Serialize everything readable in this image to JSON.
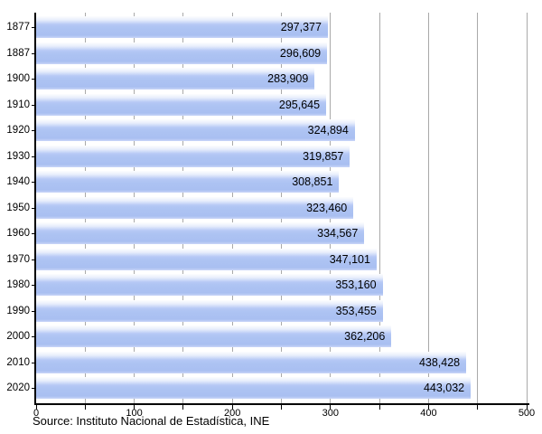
{
  "chart_data": {
    "type": "bar",
    "orientation": "horizontal",
    "title": "",
    "xlabel": "",
    "ylabel": "",
    "categories": [
      "1877",
      "1887",
      "1900",
      "1910",
      "1920",
      "1930",
      "1940",
      "1950",
      "1960",
      "1970",
      "1980",
      "1990",
      "2000",
      "2010",
      "2020"
    ],
    "values": [
      297377,
      296609,
      283909,
      295645,
      324894,
      319857,
      308851,
      323460,
      334567,
      347101,
      353160,
      353455,
      362206,
      438428,
      443032
    ],
    "value_labels": [
      "297,377",
      "296,609",
      "283,909",
      "295,645",
      "324,894",
      "319,857",
      "308,851",
      "323,460",
      "334,567",
      "347,101",
      "353,160",
      "353,455",
      "362,206",
      "438,428",
      "443,032"
    ],
    "x_axis": {
      "min": 0,
      "max": 500,
      "units_per_value": 1000,
      "minor_tick_step": 50,
      "label_step": 100,
      "tick_labels": [
        "0",
        "100",
        "200",
        "300",
        "400",
        "500"
      ]
    },
    "grid": true,
    "legend": false,
    "value_labels_position": "inside-end"
  },
  "source_note": "Source: Instituto Nacional de Estadística, INE",
  "colors": {
    "bar_fill": "#aec4f3",
    "bar_gloss_top": "#ffffff",
    "gridline": "#a9a9a9",
    "axis": "#000000",
    "text": "#000000",
    "background": "#ffffff"
  }
}
